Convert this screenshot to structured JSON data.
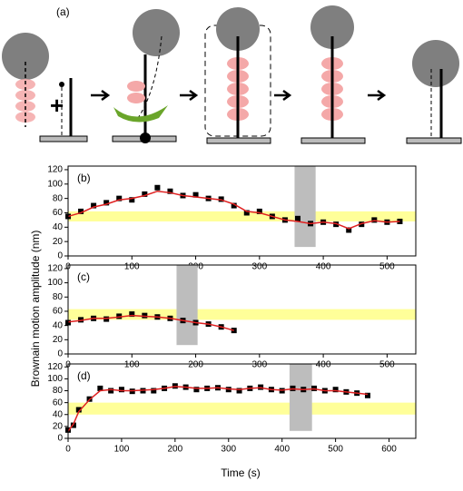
{
  "schematic": {
    "label": "(a)"
  },
  "shared": {
    "ylabel": "Brownain motion amplitude (nm)",
    "xlabel": "Time (s)"
  },
  "chart_data": [
    {
      "type": "line",
      "panel": "(b)",
      "x": [
        0,
        20,
        40,
        60,
        80,
        100,
        120,
        140,
        160,
        180,
        200,
        220,
        240,
        260,
        280,
        300,
        320,
        340,
        360,
        380,
        400,
        420,
        440,
        460,
        480,
        500,
        520
      ],
      "series": [
        {
          "color": "#000000",
          "style": "markers",
          "values": [
            55,
            62,
            70,
            74,
            80,
            78,
            86,
            95,
            90,
            84,
            85,
            80,
            79,
            70,
            60,
            62,
            55,
            50,
            52,
            45,
            47,
            44,
            36,
            44,
            50,
            47,
            48
          ]
        },
        {
          "color": "#e02020",
          "style": "line",
          "values": [
            55,
            60,
            68,
            72,
            78,
            80,
            84,
            90,
            88,
            84,
            82,
            80,
            78,
            72,
            62,
            60,
            55,
            50,
            48,
            45,
            47,
            45,
            38,
            45,
            49,
            47,
            48
          ]
        }
      ],
      "bands": [
        {
          "range": [
            48,
            62
          ],
          "color": "#ffff99"
        }
      ],
      "shaded": {
        "range": [
          355,
          388
        ],
        "color": "#bdbdbd"
      },
      "xlim": [
        0,
        545
      ],
      "xticks": [
        0,
        100,
        200,
        300,
        400,
        500
      ],
      "ylim": [
        0,
        125
      ],
      "yticks": [
        0,
        20,
        40,
        60,
        80,
        100,
        120
      ]
    },
    {
      "type": "line",
      "panel": "(c)",
      "x": [
        0,
        20,
        40,
        60,
        80,
        100,
        120,
        140,
        160,
        180,
        200,
        220,
        240,
        260
      ],
      "series": [
        {
          "color": "#000000",
          "style": "markers",
          "values": [
            44,
            48,
            50,
            49,
            53,
            56,
            54,
            52,
            50,
            47,
            44,
            42,
            38,
            33
          ]
        },
        {
          "color": "#e02020",
          "style": "line",
          "values": [
            45,
            47,
            50,
            50,
            52,
            54,
            53,
            52,
            50,
            47,
            44,
            42,
            38,
            33
          ]
        }
      ],
      "bands": [
        {
          "range": [
            48,
            63
          ],
          "color": "#ffff99"
        }
      ],
      "shaded": {
        "range": [
          170,
          203
        ],
        "color": "#bdbdbd"
      },
      "xlim": [
        0,
        545
      ],
      "xticks": [
        0,
        100,
        200,
        300,
        400,
        500
      ],
      "ylim": [
        0,
        125
      ],
      "yticks": [
        0,
        20,
        40,
        60,
        80,
        100,
        120
      ]
    },
    {
      "type": "line",
      "panel": "(d)",
      "x": [
        0,
        10,
        20,
        40,
        60,
        80,
        100,
        120,
        140,
        160,
        180,
        200,
        220,
        240,
        260,
        280,
        300,
        320,
        340,
        360,
        380,
        400,
        420,
        440,
        460,
        480,
        500,
        520,
        540,
        560
      ],
      "series": [
        {
          "color": "#000000",
          "style": "markers",
          "values": [
            14,
            22,
            48,
            66,
            84,
            80,
            82,
            79,
            80,
            80,
            84,
            88,
            86,
            82,
            84,
            85,
            82,
            80,
            84,
            86,
            82,
            80,
            84,
            82,
            84,
            80,
            82,
            78,
            76,
            72
          ]
        },
        {
          "color": "#e02020",
          "style": "line",
          "values": [
            12,
            24,
            45,
            65,
            80,
            82,
            80,
            80,
            81,
            82,
            84,
            87,
            86,
            84,
            84,
            85,
            83,
            82,
            84,
            85,
            82,
            81,
            83,
            82,
            83,
            80,
            80,
            78,
            76,
            74
          ]
        }
      ],
      "bands": [
        {
          "range": [
            40,
            60
          ],
          "color": "#ffff99"
        }
      ],
      "shaded": {
        "range": [
          414,
          456
        ],
        "color": "#bdbdbd"
      },
      "xlim": [
        0,
        650
      ],
      "xticks": [
        0,
        100,
        200,
        300,
        400,
        500,
        600
      ],
      "ylim": [
        0,
        125
      ],
      "yticks": [
        0,
        20,
        40,
        60,
        80,
        100,
        120
      ]
    }
  ]
}
